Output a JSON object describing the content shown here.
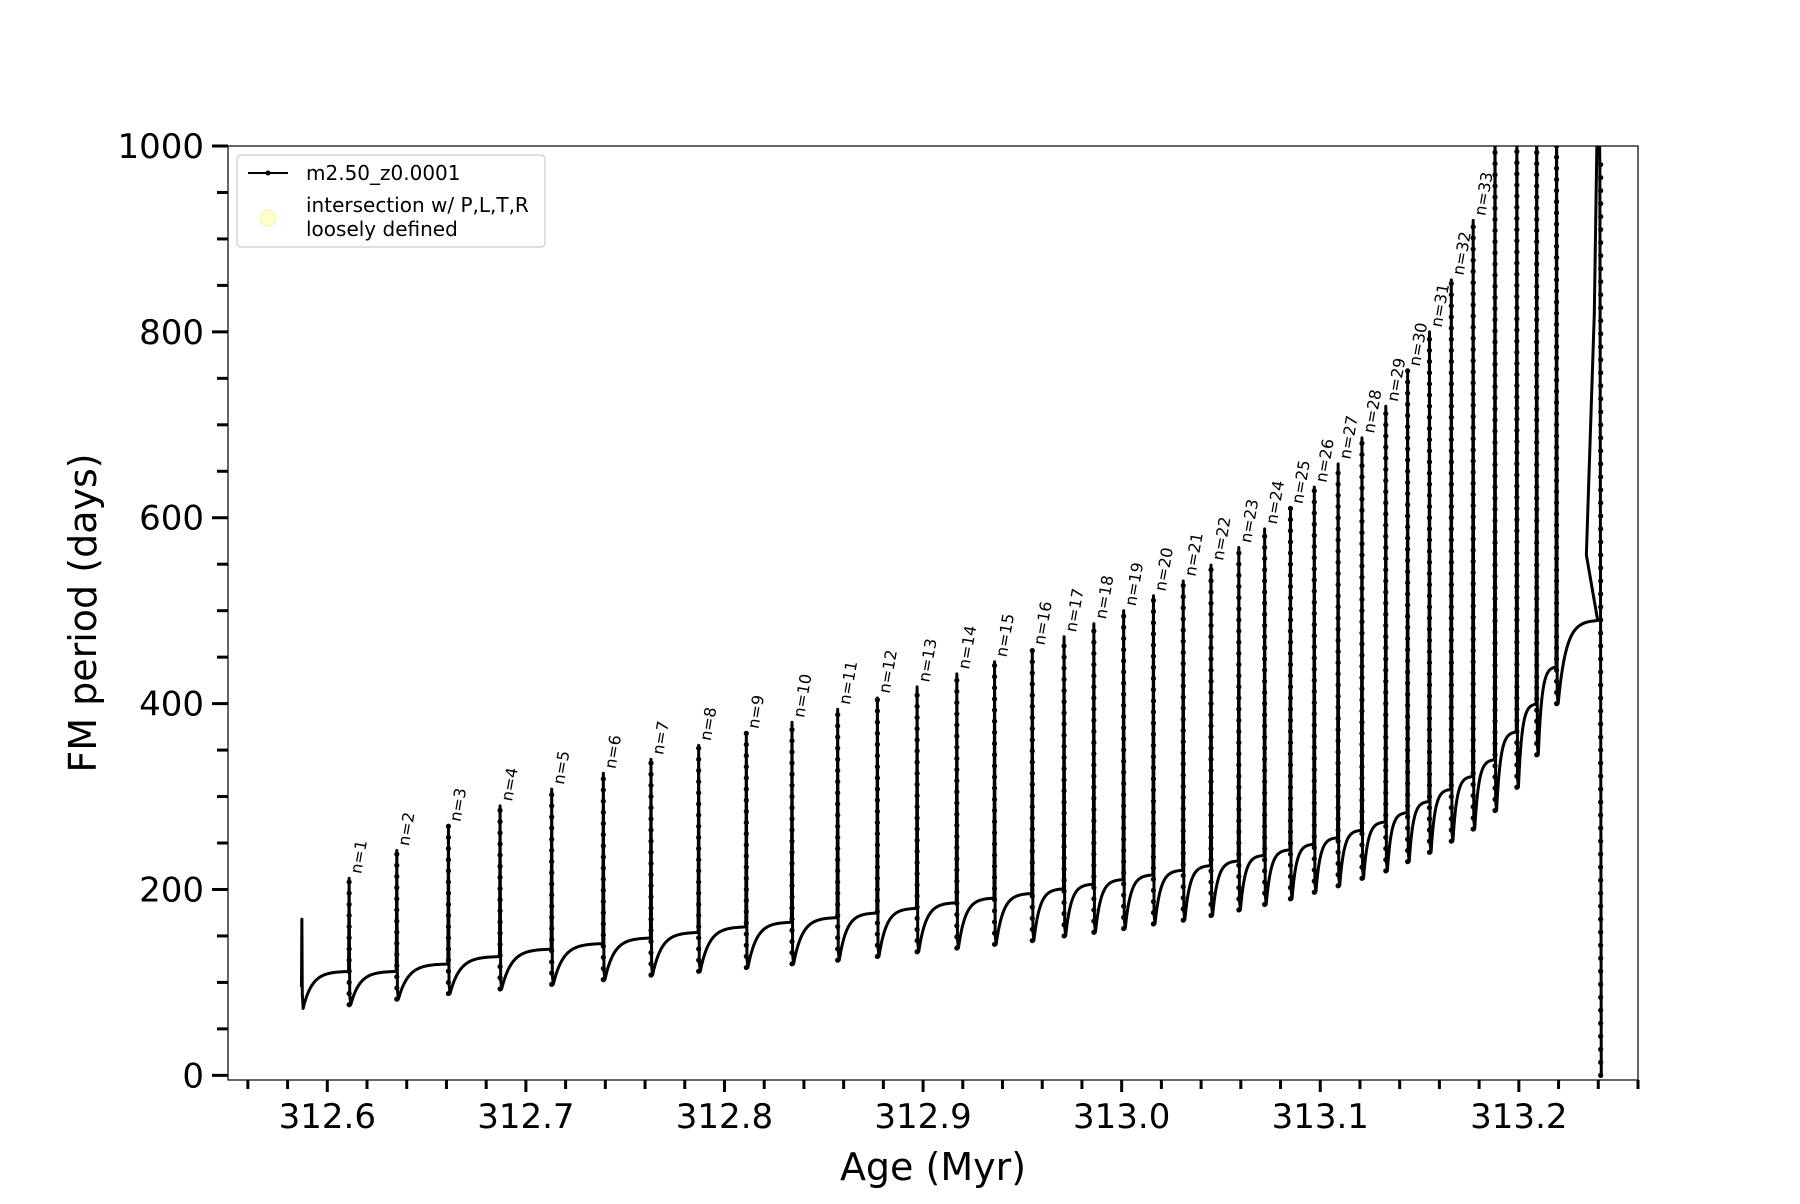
{
  "chart_data": {
    "type": "line",
    "title": "",
    "xlabel": "Age (Myr)",
    "ylabel": "FM period (days)",
    "xlim": [
      312.55,
      313.26
    ],
    "ylim": [
      -5,
      1000
    ],
    "x_ticks": [
      312.6,
      312.7,
      312.8,
      312.9,
      313.0,
      313.1,
      313.2
    ],
    "x_tick_labels": [
      "312.6",
      "312.7",
      "312.8",
      "312.9",
      "313.0",
      "313.1",
      "313.2"
    ],
    "y_ticks": [
      0,
      200,
      400,
      600,
      800,
      1000
    ],
    "y_tick_labels": [
      "0",
      "200",
      "400",
      "600",
      "800",
      "1000"
    ],
    "grid": false,
    "legend_position": "top-left",
    "legend": [
      {
        "label": "m2.50_z0.0001",
        "kind": "line-marker",
        "color": "#000000"
      },
      {
        "label": "intersection w/ P,L,T,R\nloosely defined",
        "kind": "circle",
        "color": "#ffffc8"
      }
    ],
    "series": [
      {
        "name": "m2.50_z0.0001",
        "color": "#000000",
        "pulse_start_age": 312.587,
        "pulses": [
          {
            "n": 1,
            "age": 312.611,
            "peak": 212,
            "min": 76,
            "base": 112
          },
          {
            "n": 2,
            "age": 312.635,
            "peak": 242,
            "min": 82,
            "base": 120
          },
          {
            "n": 3,
            "age": 312.661,
            "peak": 268,
            "min": 88,
            "base": 128
          },
          {
            "n": 4,
            "age": 312.687,
            "peak": 290,
            "min": 93,
            "base": 136
          },
          {
            "n": 5,
            "age": 312.713,
            "peak": 308,
            "min": 98,
            "base": 142
          },
          {
            "n": 6,
            "age": 312.739,
            "peak": 325,
            "min": 103,
            "base": 148
          },
          {
            "n": 7,
            "age": 312.763,
            "peak": 340,
            "min": 108,
            "base": 154
          },
          {
            "n": 8,
            "age": 312.787,
            "peak": 355,
            "min": 112,
            "base": 160
          },
          {
            "n": 9,
            "age": 312.811,
            "peak": 368,
            "min": 116,
            "base": 165
          },
          {
            "n": 10,
            "age": 312.834,
            "peak": 380,
            "min": 120,
            "base": 170
          },
          {
            "n": 11,
            "age": 312.857,
            "peak": 394,
            "min": 124,
            "base": 175
          },
          {
            "n": 12,
            "age": 312.877,
            "peak": 406,
            "min": 128,
            "base": 180
          },
          {
            "n": 13,
            "age": 312.897,
            "peak": 418,
            "min": 133,
            "base": 186
          },
          {
            "n": 14,
            "age": 312.917,
            "peak": 432,
            "min": 137,
            "base": 191
          },
          {
            "n": 15,
            "age": 312.936,
            "peak": 445,
            "min": 141,
            "base": 196
          },
          {
            "n": 16,
            "age": 312.955,
            "peak": 458,
            "min": 145,
            "base": 201
          },
          {
            "n": 17,
            "age": 312.971,
            "peak": 472,
            "min": 150,
            "base": 206
          },
          {
            "n": 18,
            "age": 312.986,
            "peak": 486,
            "min": 154,
            "base": 211
          },
          {
            "n": 19,
            "age": 313.001,
            "peak": 500,
            "min": 158,
            "base": 216
          },
          {
            "n": 20,
            "age": 313.016,
            "peak": 516,
            "min": 163,
            "base": 221
          },
          {
            "n": 21,
            "age": 313.031,
            "peak": 532,
            "min": 167,
            "base": 226
          },
          {
            "n": 22,
            "age": 313.045,
            "peak": 549,
            "min": 172,
            "base": 231
          },
          {
            "n": 23,
            "age": 313.059,
            "peak": 568,
            "min": 178,
            "base": 237
          },
          {
            "n": 24,
            "age": 313.072,
            "peak": 588,
            "min": 184,
            "base": 243
          },
          {
            "n": 25,
            "age": 313.085,
            "peak": 610,
            "min": 190,
            "base": 249
          },
          {
            "n": 26,
            "age": 313.097,
            "peak": 633,
            "min": 197,
            "base": 256
          },
          {
            "n": 27,
            "age": 313.109,
            "peak": 658,
            "min": 204,
            "base": 264
          },
          {
            "n": 28,
            "age": 313.121,
            "peak": 686,
            "min": 212,
            "base": 273
          },
          {
            "n": 29,
            "age": 313.133,
            "peak": 720,
            "min": 220,
            "base": 283
          },
          {
            "n": 30,
            "age": 313.144,
            "peak": 758,
            "min": 230,
            "base": 295
          },
          {
            "n": 31,
            "age": 313.155,
            "peak": 800,
            "min": 240,
            "base": 308
          },
          {
            "n": 32,
            "age": 313.166,
            "peak": 856,
            "min": 252,
            "base": 322
          },
          {
            "n": 33,
            "age": 313.177,
            "peak": 920,
            "min": 265,
            "base": 340
          }
        ],
        "late_spikes": [
          {
            "age": 313.188,
            "min": 285,
            "base": 370
          },
          {
            "age": 313.199,
            "min": 310,
            "base": 400
          },
          {
            "age": 313.209,
            "min": 345,
            "base": 440
          },
          {
            "age": 313.219,
            "min": 400,
            "base": 490
          }
        ],
        "final_drop_age": 313.24
      }
    ]
  }
}
